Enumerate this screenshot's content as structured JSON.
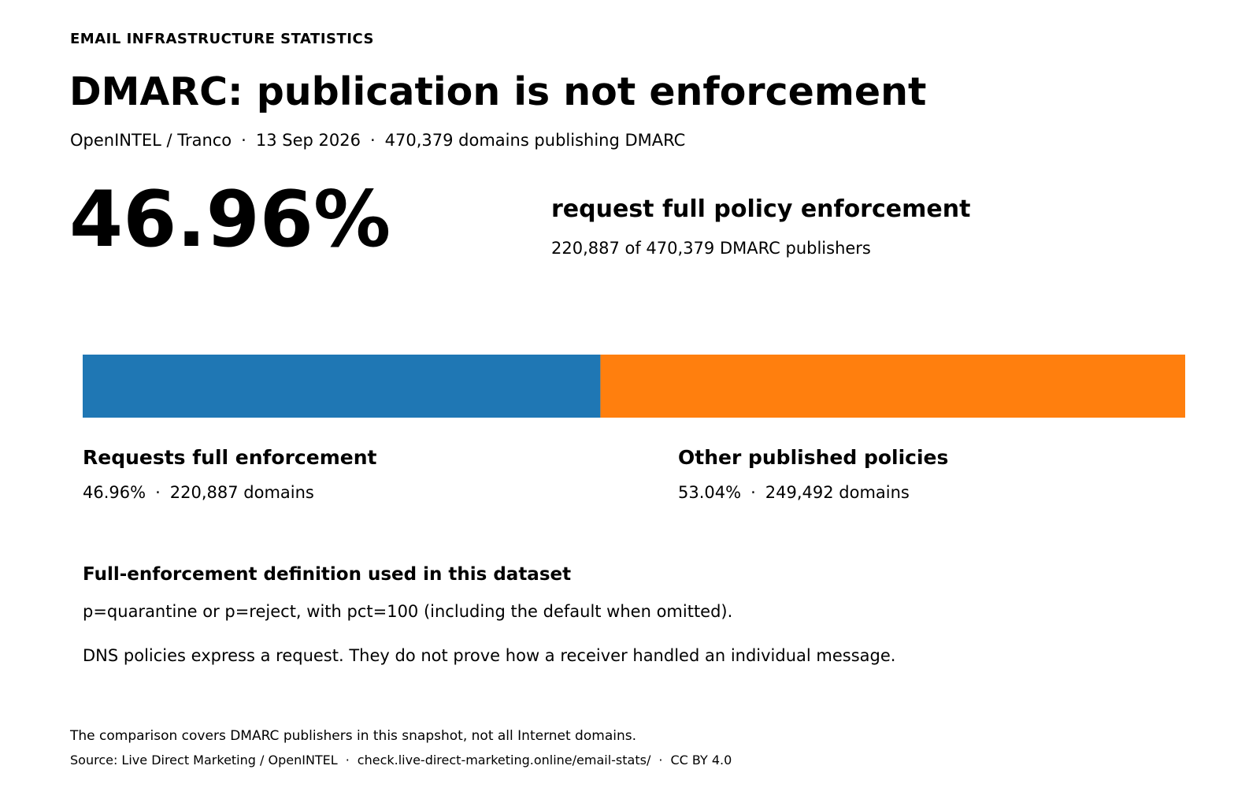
{
  "header": {
    "eyebrow": "EMAIL INFRASTRUCTURE STATISTICS",
    "title": "DMARC: publication is not enforcement",
    "subtitle_source": "OpenINTEL / Tranco",
    "subtitle_date": "13 Sep 2026",
    "subtitle_count": "470,379 domains publishing DMARC",
    "separator": "·"
  },
  "headline": {
    "value": "46.96%",
    "label": "request full policy enforcement",
    "detail": "220,887 of 470,379 DMARC publishers"
  },
  "legend": [
    {
      "title": "Requests full enforcement",
      "percent": "46.96%",
      "count": "220,887 domains",
      "color": "#1f77b4"
    },
    {
      "title": "Other published policies",
      "percent": "53.04%",
      "count": "249,492 domains",
      "color": "#ff7f0e"
    }
  ],
  "chart_data": {
    "type": "bar",
    "orientation": "horizontal-stacked",
    "total": 470379,
    "series": [
      {
        "name": "Requests full enforcement",
        "value": 220887,
        "percent": 46.96,
        "color": "#1f77b4"
      },
      {
        "name": "Other published policies",
        "value": 249492,
        "percent": 53.04,
        "color": "#ff7f0e"
      }
    ],
    "title": "DMARC: publication is not enforcement",
    "xlabel": "",
    "ylabel": "",
    "grid": false
  },
  "definition": {
    "title": "Full-enforcement definition used in this dataset",
    "text": "p=quarantine or p=reject, with pct=100 (including the default when omitted).",
    "caveat": "DNS policies express a request. They do not prove how a receiver handled an individual message."
  },
  "footer": {
    "note": "The comparison covers DMARC publishers in this snapshot, not all Internet domains.",
    "source": "Source: Live Direct Marketing / OpenINTEL",
    "url": "check.live-direct-marketing.online/email-stats/",
    "license": "CC BY 4.0"
  }
}
